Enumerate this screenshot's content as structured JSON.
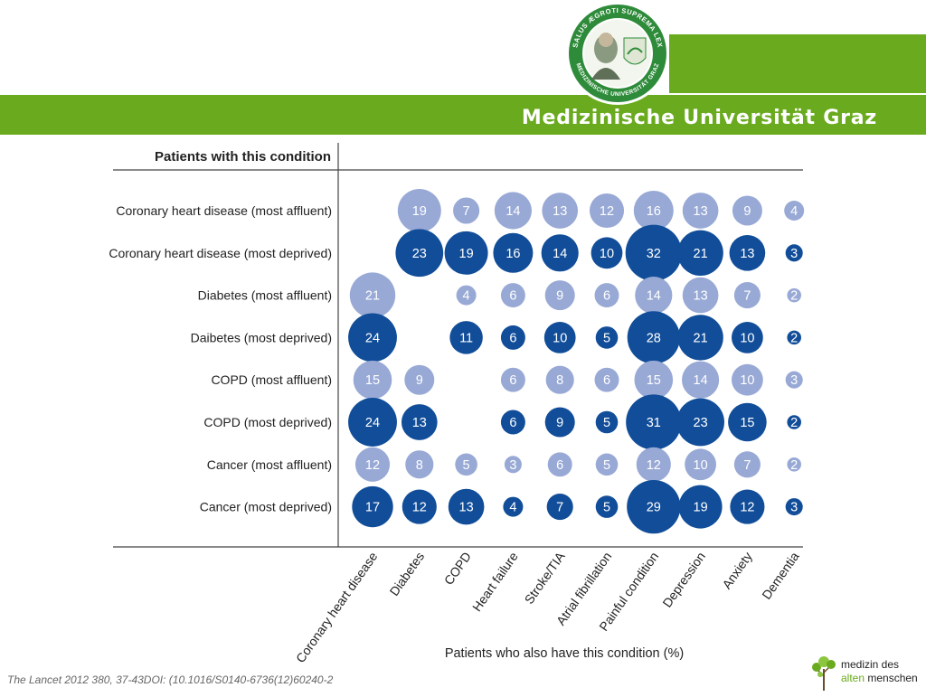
{
  "header": {
    "university_name": "Medizinische Universität Graz",
    "seal_outer_text": "SALUS ÆGROTI SUPREMA LEX",
    "seal_inner_text": "MEDIZINISCHE UNIVERSITÄT GRAZ"
  },
  "footer": {
    "citation": "The Lancet 2012 380, 37-43DOI: (10.1016/S0140-6736(12)60240-2",
    "brand_line1": "medizin des",
    "brand_line2_accent": "alten",
    "brand_line2_rest": " menschen"
  },
  "colors": {
    "affluent": "#98a9d5",
    "deprived": "#114d99",
    "brand_green": "#6aaa1e"
  },
  "chart_data": {
    "type": "bubble-matrix",
    "row_axis_title": "Patients with this condition",
    "column_axis_title": "Patients who also have this condition (%)",
    "columns": [
      "Coronary heart disease",
      "Diabetes",
      "COPD",
      "Heart failure",
      "Stroke/TIA",
      "Atrial fibrillation",
      "Painful condition",
      "Depression",
      "Anxiety",
      "Dementia"
    ],
    "rows": [
      {
        "label": "Coronary heart disease (most affluent)",
        "group": "affluent",
        "values": [
          null,
          19,
          7,
          14,
          13,
          12,
          16,
          13,
          9,
          4
        ]
      },
      {
        "label": "Coronary heart disease (most deprived)",
        "group": "deprived",
        "values": [
          null,
          23,
          19,
          16,
          14,
          10,
          32,
          21,
          13,
          3
        ]
      },
      {
        "label": "Diabetes (most affluent)",
        "group": "affluent",
        "values": [
          21,
          null,
          4,
          6,
          9,
          6,
          14,
          13,
          7,
          2
        ]
      },
      {
        "label": "Daibetes (most deprived)",
        "group": "deprived",
        "values": [
          24,
          null,
          11,
          6,
          10,
          5,
          28,
          21,
          10,
          2
        ]
      },
      {
        "label": "COPD (most affluent)",
        "group": "affluent",
        "values": [
          15,
          9,
          null,
          6,
          8,
          6,
          15,
          14,
          10,
          3
        ]
      },
      {
        "label": "COPD (most deprived)",
        "group": "deprived",
        "values": [
          24,
          13,
          null,
          6,
          9,
          5,
          31,
          23,
          15,
          2
        ]
      },
      {
        "label": "Cancer (most affluent)",
        "group": "affluent",
        "values": [
          12,
          8,
          5,
          3,
          6,
          5,
          12,
          10,
          7,
          2
        ]
      },
      {
        "label": "Cancer (most deprived)",
        "group": "deprived",
        "values": [
          17,
          12,
          13,
          4,
          7,
          5,
          29,
          19,
          12,
          3
        ]
      }
    ]
  }
}
